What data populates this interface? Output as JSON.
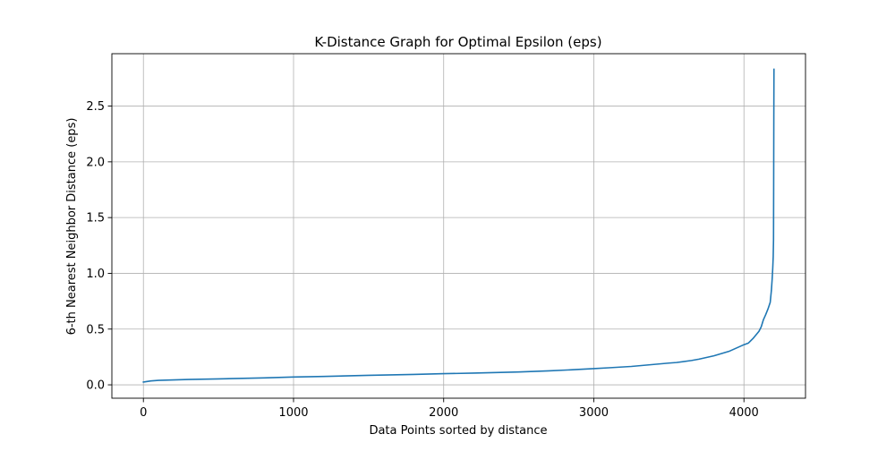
{
  "chart_data": {
    "type": "line",
    "title": "K-Distance Graph for Optimal Epsilon (eps)",
    "xlabel": "Data Points sorted by distance",
    "ylabel": "6-th Nearest Neighbor Distance (eps)",
    "xlim": [
      -210,
      4410
    ],
    "ylim": [
      -0.12,
      2.97
    ],
    "xticks": [
      0,
      1000,
      2000,
      3000,
      4000
    ],
    "xtick_labels": [
      "0",
      "1000",
      "2000",
      "3000",
      "4000"
    ],
    "yticks": [
      0.0,
      0.5,
      1.0,
      1.5,
      2.0,
      2.5
    ],
    "ytick_labels": [
      "0.0",
      "0.5",
      "1.0",
      "1.5",
      "2.0",
      "2.5"
    ],
    "grid": true,
    "line_color": "#1f77b4",
    "series": [
      {
        "x": [
          0,
          50,
          100,
          300,
          500,
          800,
          1000,
          1200,
          1500,
          1800,
          2000,
          2200,
          2500,
          2700,
          2900,
          3000,
          3100,
          3250,
          3400,
          3500,
          3550,
          3650,
          3700,
          3800,
          3900,
          3950,
          4000,
          4030,
          4060,
          4100,
          4115,
          4130,
          4145,
          4160,
          4175,
          4183,
          4188,
          4192,
          4195,
          4197,
          4198,
          4199,
          4200
        ],
        "y": [
          0.025,
          0.035,
          0.04,
          0.048,
          0.053,
          0.062,
          0.07,
          0.075,
          0.085,
          0.093,
          0.1,
          0.105,
          0.115,
          0.125,
          0.138,
          0.145,
          0.153,
          0.165,
          0.183,
          0.195,
          0.2,
          0.218,
          0.23,
          0.26,
          0.3,
          0.33,
          0.36,
          0.375,
          0.415,
          0.48,
          0.52,
          0.585,
          0.63,
          0.68,
          0.74,
          0.85,
          0.95,
          1.05,
          1.15,
          1.3,
          1.8,
          2.4,
          2.83
        ]
      }
    ]
  }
}
